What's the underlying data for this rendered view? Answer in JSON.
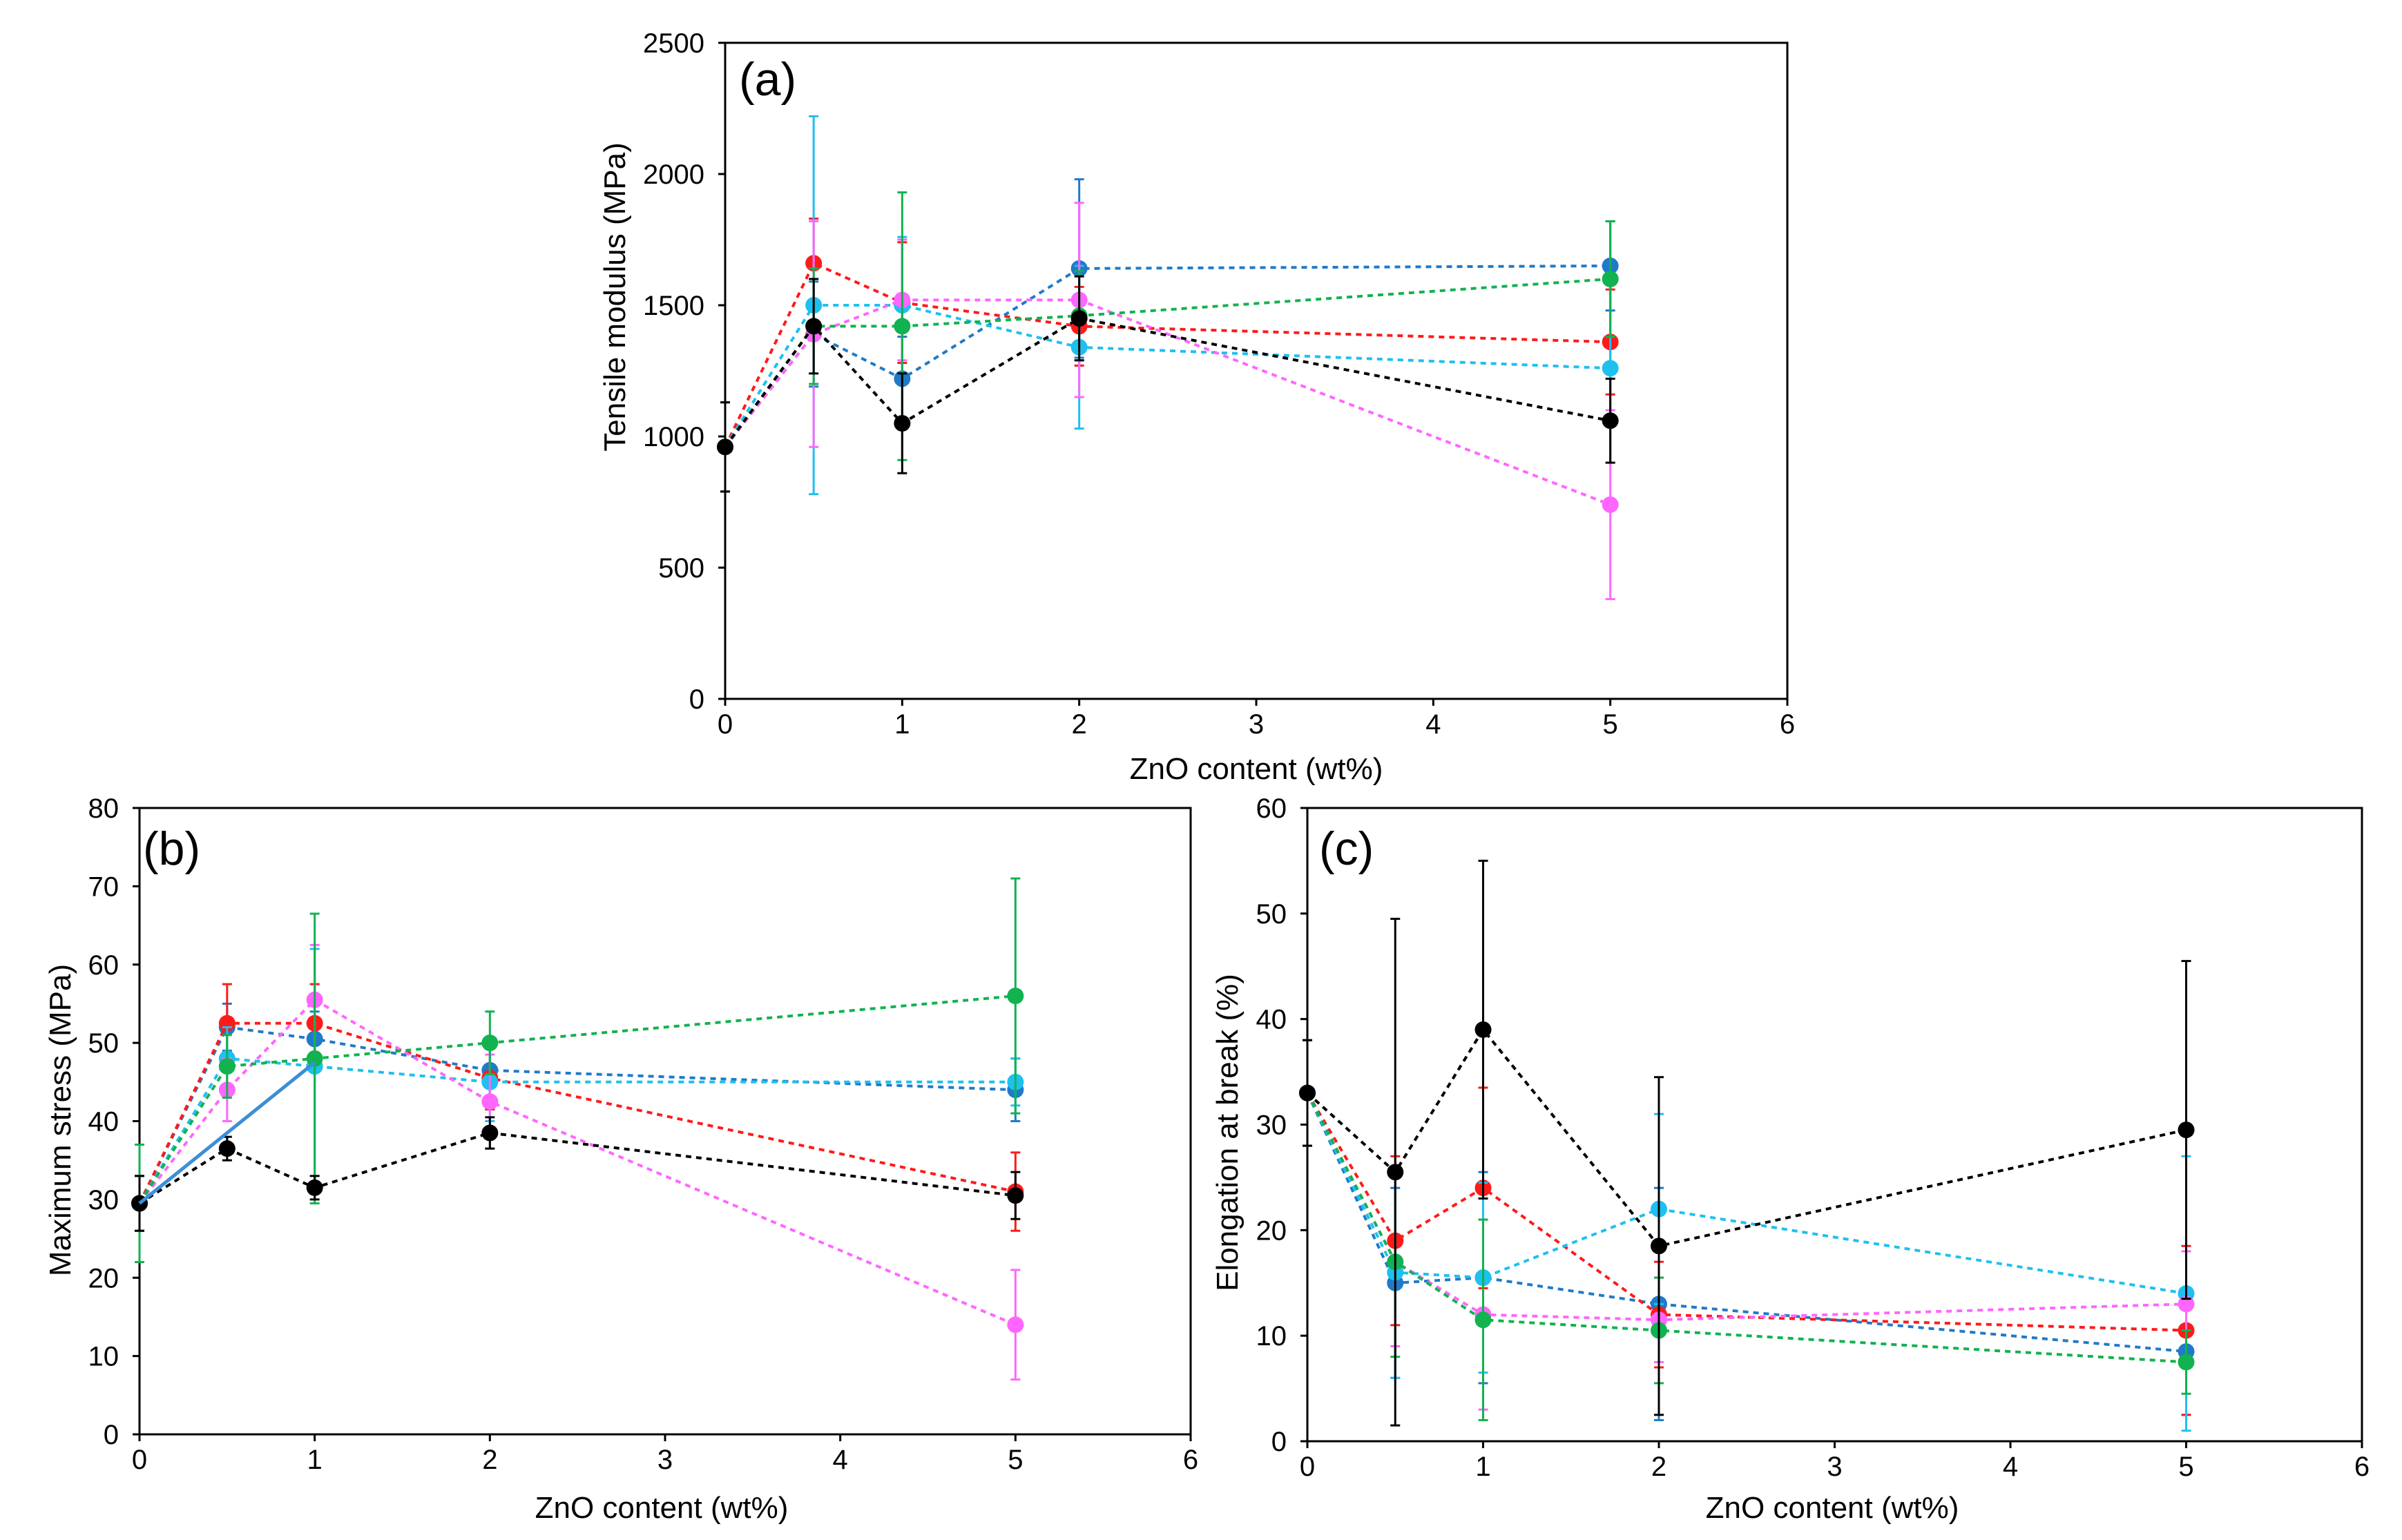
{
  "chart_data": [
    {
      "type": "scatter",
      "panel_label": "(a)",
      "xlabel": "ZnO content (wt%)",
      "ylabel": "Tensile modulus  (MPa)",
      "xlim": [
        0,
        6
      ],
      "ylim": [
        0,
        2500
      ],
      "x_ticks": [
        0,
        1,
        2,
        3,
        4,
        5,
        6
      ],
      "y_ticks": [
        0,
        500,
        1000,
        1500,
        2000,
        2500
      ],
      "grid": false,
      "legend": "none",
      "series": [
        {
          "color": "#1f7ac9",
          "style": "dotted",
          "x": [
            0,
            0.5,
            1,
            2,
            5
          ],
          "y": [
            960,
            1390,
            1220,
            1640,
            1650
          ],
          "err": [
            170,
            200,
            160,
            340,
            170
          ]
        },
        {
          "color": "#ff1a1a",
          "style": "dotted",
          "x": [
            0,
            0.5,
            1,
            2,
            5
          ],
          "y": [
            960,
            1660,
            1510,
            1420,
            1360
          ],
          "err": [
            170,
            170,
            230,
            150,
            200
          ]
        },
        {
          "color": "#1ec0f0",
          "style": "dotted",
          "x": [
            0,
            0.5,
            1,
            2,
            5
          ],
          "y": [
            960,
            1500,
            1500,
            1340,
            1260
          ],
          "err": [
            170,
            720,
            260,
            310,
            360
          ]
        },
        {
          "color": "#ff66ff",
          "style": "dotted",
          "x": [
            0,
            0.5,
            1,
            2,
            5
          ],
          "y": [
            960,
            1390,
            1520,
            1520,
            740
          ],
          "err": [
            170,
            430,
            230,
            370,
            360
          ]
        },
        {
          "color": "#11b24f",
          "style": "dotted",
          "x": [
            0,
            0.5,
            1,
            2,
            5
          ],
          "y": [
            960,
            1420,
            1420,
            1460,
            1600
          ],
          "err": [
            170,
            220,
            510,
            170,
            220
          ]
        },
        {
          "color": "#000000",
          "style": "dotted",
          "x": [
            0,
            0.5,
            1,
            2,
            5
          ],
          "y": [
            960,
            1420,
            1050,
            1450,
            1060
          ],
          "err": [
            170,
            180,
            190,
            160,
            160
          ]
        }
      ]
    },
    {
      "type": "scatter",
      "panel_label": "(b)",
      "xlabel": "ZnO content (wt%)",
      "ylabel": "Maximum  stress (MPa)",
      "xlim": [
        0,
        6
      ],
      "ylim": [
        0,
        80
      ],
      "x_ticks": [
        0,
        1,
        2,
        3,
        4,
        5,
        6
      ],
      "y_ticks": [
        0,
        10,
        20,
        30,
        40,
        50,
        60,
        70,
        80
      ],
      "grid": false,
      "legend": "none",
      "series": [
        {
          "color": "#1f7ac9",
          "style": "dotted",
          "x": [
            0,
            0.5,
            1,
            2,
            5
          ],
          "y": [
            29.5,
            52,
            50.5,
            46.5,
            44
          ],
          "err": [
            3.5,
            3,
            3.5,
            3.5,
            4
          ]
        },
        {
          "color": "#ff1a1a",
          "style": "dotted",
          "x": [
            0,
            0.5,
            1,
            2,
            5
          ],
          "y": [
            29.5,
            52.5,
            52.5,
            45.5,
            31
          ],
          "err": [
            3.5,
            5,
            5,
            4,
            5
          ]
        },
        {
          "color": "#1ec0f0",
          "style": "dotted",
          "x": [
            0,
            0.5,
            1,
            2,
            5
          ],
          "y": [
            29.5,
            48,
            47,
            45,
            45
          ],
          "err": [
            3.5,
            4,
            15,
            5,
            3
          ]
        },
        {
          "color": "#ff66ff",
          "style": "dotted",
          "x": [
            0,
            0.5,
            1,
            2,
            5
          ],
          "y": [
            29.5,
            44,
            55.5,
            42.5,
            14
          ],
          "err": [
            3.5,
            4,
            7,
            6,
            7
          ]
        },
        {
          "color": "#11b24f",
          "style": "dotted",
          "x": [
            0,
            0.5,
            1,
            2,
            5
          ],
          "y": [
            29.5,
            47,
            48,
            50,
            56
          ],
          "err": [
            7.5,
            4,
            18.5,
            4,
            15
          ]
        },
        {
          "color": "#000000",
          "style": "dotted",
          "x": [
            0,
            0.5,
            1,
            2,
            5
          ],
          "y": [
            29.5,
            36.5,
            31.5,
            38.5,
            30.5
          ],
          "err": [
            3.5,
            1.5,
            1.5,
            2,
            3
          ]
        },
        {
          "color": "#3b8fd6",
          "style": "solid",
          "x": [
            0,
            1
          ],
          "y": [
            29.5,
            47.5
          ],
          "err": []
        }
      ]
    },
    {
      "type": "scatter",
      "panel_label": "(c)",
      "xlabel": "ZnO content (wt%)",
      "ylabel": "Elongation at break (%)",
      "xlim": [
        0,
        6
      ],
      "ylim": [
        0,
        60
      ],
      "x_ticks": [
        0,
        1,
        2,
        3,
        4,
        5,
        6
      ],
      "y_ticks": [
        0,
        10,
        20,
        30,
        40,
        50,
        60
      ],
      "grid": false,
      "legend": "none",
      "series": [
        {
          "color": "#1f7ac9",
          "style": "dotted",
          "x": [
            0,
            0.5,
            1,
            2,
            5
          ],
          "y": [
            33,
            15,
            15.5,
            13,
            8.5
          ],
          "err": [
            5,
            9,
            10,
            11,
            6
          ]
        },
        {
          "color": "#ff1a1a",
          "style": "dotted",
          "x": [
            0,
            0.5,
            1,
            2,
            5
          ],
          "y": [
            33,
            19,
            24,
            12,
            10.5
          ],
          "err": [
            5,
            8,
            9.5,
            5,
            8
          ]
        },
        {
          "color": "#1ec0f0",
          "style": "dotted",
          "x": [
            0,
            0.5,
            1,
            2,
            5
          ],
          "y": [
            33,
            16,
            15.5,
            22,
            14
          ],
          "err": [
            5,
            10,
            9,
            9,
            13
          ]
        },
        {
          "color": "#ff66ff",
          "style": "dotted",
          "x": [
            0,
            0.5,
            1,
            2,
            5
          ],
          "y": [
            33,
            17,
            12,
            11.5,
            13
          ],
          "err": [
            5,
            8,
            9,
            4,
            5
          ]
        },
        {
          "color": "#11b24f",
          "style": "dotted",
          "x": [
            0,
            0.5,
            1,
            2,
            5
          ],
          "y": [
            33,
            17,
            11.5,
            10.5,
            7.5
          ],
          "err": [
            5,
            9,
            9.5,
            5,
            3
          ]
        },
        {
          "color": "#000000",
          "style": "dotted",
          "x": [
            0,
            0.5,
            1,
            2,
            5
          ],
          "y": [
            33,
            25.5,
            39,
            18.5,
            29.5
          ],
          "err": [
            5,
            24,
            16,
            16,
            16
          ]
        }
      ]
    }
  ]
}
